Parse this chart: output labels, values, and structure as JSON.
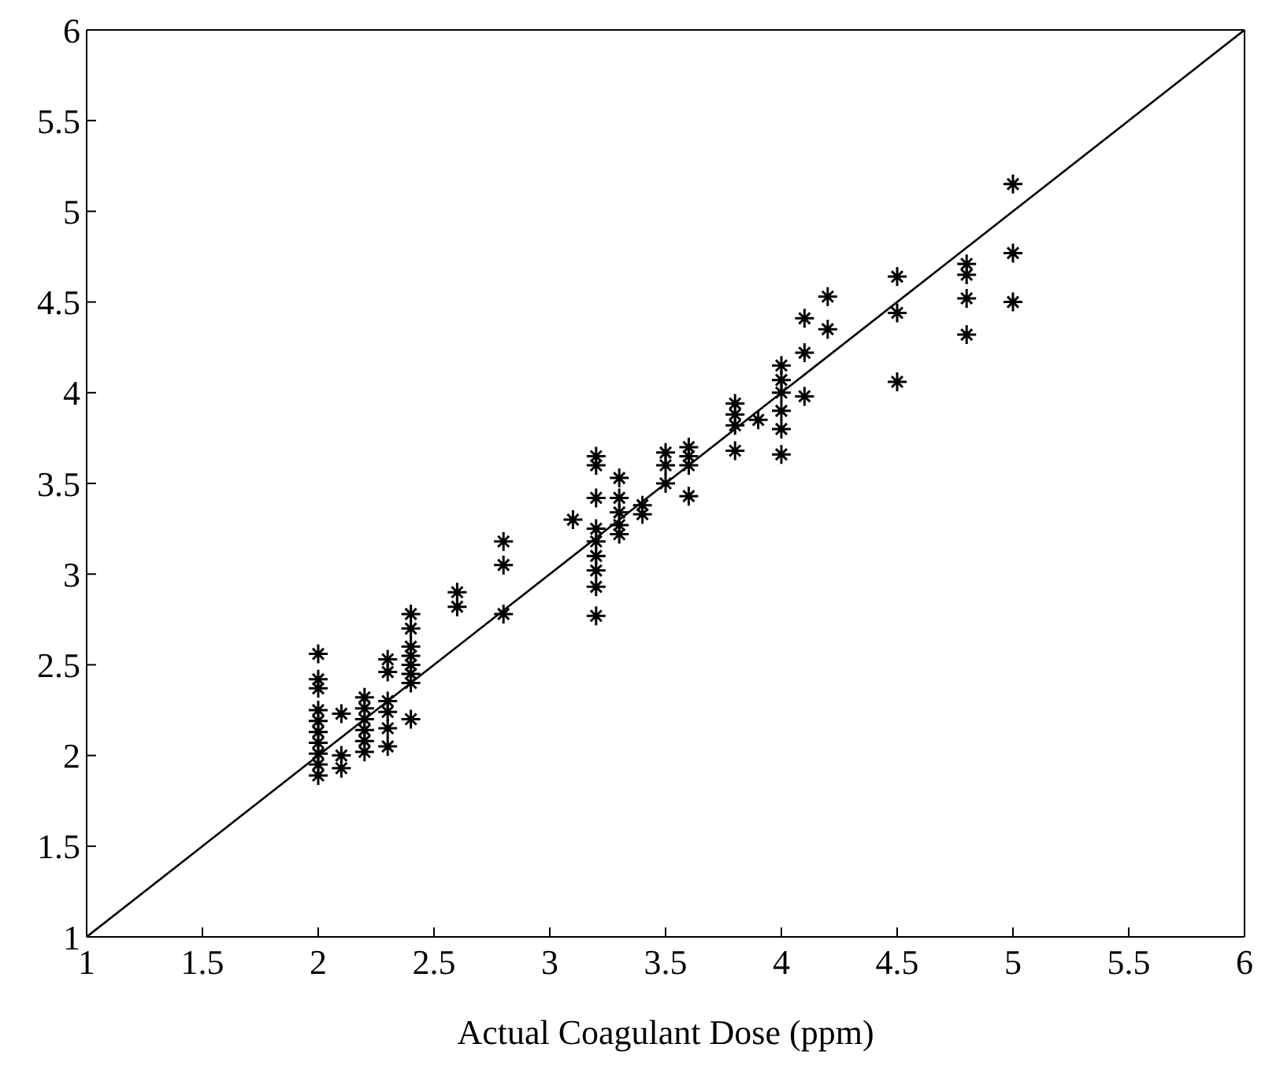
{
  "chart_data": {
    "type": "scatter",
    "xlabel": "Actual Coagulant Dose (ppm)",
    "xlim": [
      1,
      6
    ],
    "ylim": [
      1,
      6
    ],
    "xticks": [
      1,
      1.5,
      2,
      2.5,
      3,
      3.5,
      4,
      4.5,
      5,
      5.5,
      6
    ],
    "yticks": [
      1,
      1.5,
      2,
      2.5,
      3,
      3.5,
      4,
      4.5,
      5,
      5.5,
      6
    ],
    "marker": "cross",
    "series": [
      {
        "type": "line",
        "color": "#000000",
        "marker": "none",
        "line_style": "solid",
        "x": [
          1,
          6
        ],
        "values": [
          1,
          6
        ]
      },
      {
        "color": "#000000",
        "x": [
          2,
          2,
          2,
          2,
          2,
          2,
          2,
          2,
          2,
          2,
          2.1,
          2.1,
          2.1,
          2.2,
          2.2,
          2.2,
          2.2,
          2.2,
          2.2,
          2.3,
          2.3,
          2.3,
          2.3,
          2.3,
          2.3,
          2.4,
          2.4,
          2.4,
          2.4,
          2.4,
          2.4,
          2.4,
          2.4,
          2.6,
          2.6,
          2.8,
          2.8,
          2.8,
          3.1,
          3.2,
          3.2,
          3.2,
          3.2,
          3.2,
          3.2,
          3.2,
          3.2,
          3.2,
          3.3,
          3.3,
          3.3,
          3.3,
          3.3,
          3.4,
          3.4,
          3.5,
          3.5,
          3.5,
          3.6,
          3.6,
          3.6,
          3.6,
          3.8,
          3.8,
          3.8,
          3.8,
          3.9,
          4,
          4,
          4,
          4,
          4,
          4,
          4.1,
          4.1,
          4.1,
          4.2,
          4.2,
          4.5,
          4.5,
          4.5,
          4.8,
          4.8,
          4.8,
          4.8,
          5,
          5,
          5
        ],
        "values": [
          2.56,
          2.42,
          2.37,
          2.25,
          2.19,
          2.13,
          2.07,
          2.01,
          1.95,
          1.89,
          2.23,
          2,
          1.93,
          2.32,
          2.26,
          2.2,
          2.14,
          2.08,
          2.02,
          2.53,
          2.46,
          2.3,
          2.24,
          2.15,
          2.05,
          2.78,
          2.7,
          2.6,
          2.55,
          2.5,
          2.45,
          2.4,
          2.2,
          2.9,
          2.82,
          3.18,
          3.05,
          2.78,
          3.3,
          3.65,
          3.6,
          3.42,
          3.25,
          3.18,
          3.1,
          3.02,
          2.93,
          2.77,
          3.53,
          3.42,
          3.34,
          3.27,
          3.22,
          3.38,
          3.33,
          3.67,
          3.6,
          3.5,
          3.7,
          3.65,
          3.6,
          3.43,
          3.94,
          3.88,
          3.82,
          3.68,
          3.85,
          4.15,
          4.07,
          4,
          3.9,
          3.8,
          3.66,
          4.41,
          4.22,
          3.98,
          4.53,
          4.35,
          4.64,
          4.44,
          4.06,
          4.71,
          4.65,
          4.52,
          4.32,
          5.15,
          4.77,
          4.5
        ]
      }
    ]
  }
}
